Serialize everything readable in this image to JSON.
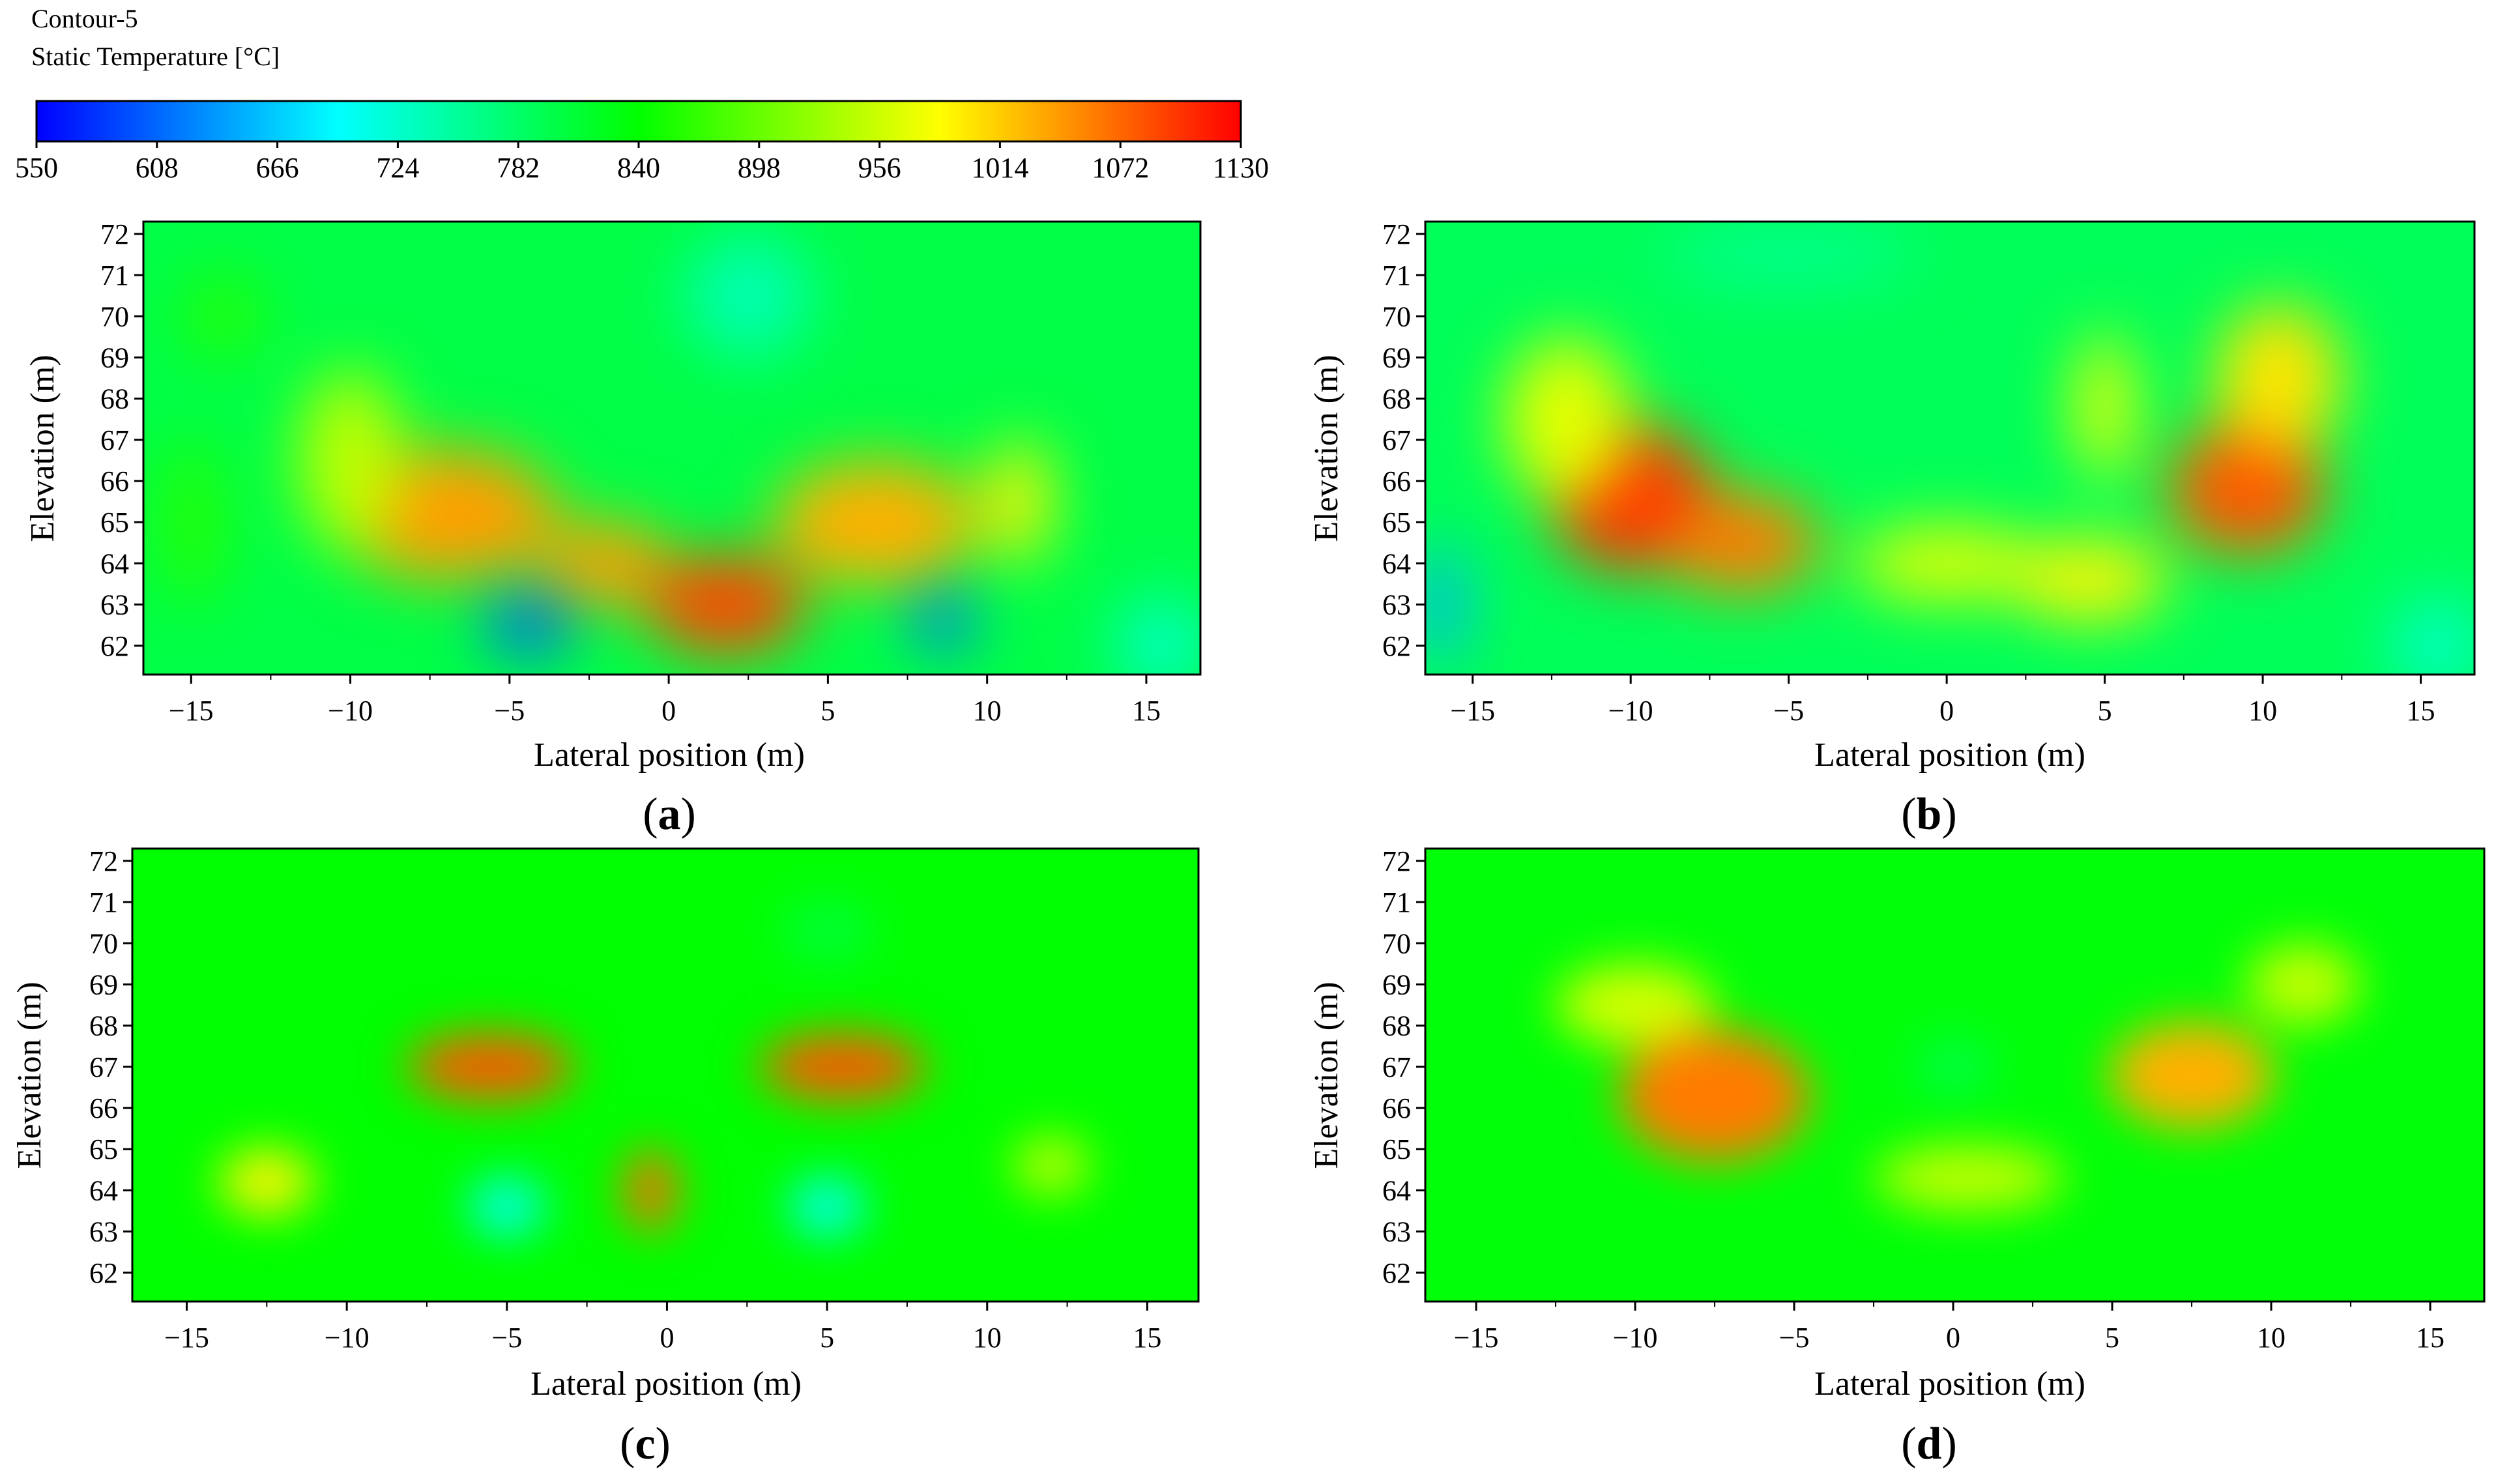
{
  "legend": {
    "title": "Contour-5",
    "variable": "Static Temperature [°C]",
    "min": 550,
    "max": 1130,
    "tick_labels": [
      "550",
      "608",
      "666",
      "724",
      "782",
      "840",
      "898",
      "956",
      "1014",
      "1072",
      "1130"
    ],
    "colors": [
      "#0000ff",
      "#0080ff",
      "#00ffff",
      "#00ff80",
      "#00ff00",
      "#80ff00",
      "#ffff00",
      "#ff8000",
      "#ff0000"
    ]
  },
  "chart_data": [
    {
      "type": "heatmap",
      "panel": "(a)",
      "label_letter": "a",
      "xlabel": "Lateral position (m)",
      "ylabel": "Elevation (m)",
      "xlim": [
        -16.5,
        16.7
      ],
      "ylim": [
        61.3,
        72.3
      ],
      "xticks": [
        -15,
        -10,
        -5,
        0,
        5,
        10,
        15
      ],
      "yticks": [
        62,
        63,
        64,
        65,
        66,
        67,
        68,
        69,
        70,
        71,
        72
      ],
      "base_temperature": 800,
      "hotspots": [
        {
          "x": -4.4,
          "y": 62.5,
          "temperature": 600,
          "sx": 1.4,
          "sy": 0.7
        },
        {
          "x": 8.6,
          "y": 62.6,
          "temperature": 610,
          "sx": 1.0,
          "sy": 0.7
        },
        {
          "x": 1.8,
          "y": 63.0,
          "temperature": 1090,
          "sx": 2.5,
          "sy": 1.2
        },
        {
          "x": -7.0,
          "y": 65.2,
          "temperature": 1040,
          "sx": 3.5,
          "sy": 1.6
        },
        {
          "x": 6.5,
          "y": 65.0,
          "temperature": 1030,
          "sx": 3.2,
          "sy": 1.5
        },
        {
          "x": -2.0,
          "y": 64.0,
          "temperature": 1040,
          "sx": 2.0,
          "sy": 1.0
        },
        {
          "x": -10.0,
          "y": 66.5,
          "temperature": 950,
          "sx": 1.6,
          "sy": 2.2
        },
        {
          "x": 11.0,
          "y": 65.5,
          "temperature": 990,
          "sx": 1.0,
          "sy": 1.5
        },
        {
          "x": -15.0,
          "y": 65.0,
          "temperature": 860,
          "sx": 1.0,
          "sy": 2.0
        },
        {
          "x": -14.0,
          "y": 70.0,
          "temperature": 860,
          "sx": 1.2,
          "sy": 1.0
        },
        {
          "x": 2.5,
          "y": 70.5,
          "temperature": 740,
          "sx": 2.0,
          "sy": 1.5
        },
        {
          "x": 15.5,
          "y": 62.0,
          "temperature": 730,
          "sx": 1.5,
          "sy": 1.2
        }
      ]
    },
    {
      "type": "heatmap",
      "panel": "(b)",
      "label_letter": "b",
      "xlabel": "Lateral position (m)",
      "ylabel": "Elevation (m)",
      "xlim": [
        -16.5,
        16.7
      ],
      "ylim": [
        61.3,
        72.3
      ],
      "xticks": [
        -15,
        -10,
        -5,
        0,
        5,
        10,
        15
      ],
      "yticks": [
        62,
        63,
        64,
        65,
        66,
        67,
        68,
        69,
        70,
        71,
        72
      ],
      "base_temperature": 790,
      "hotspots": [
        {
          "x": -10.0,
          "y": 65.6,
          "temperature": 1100,
          "sx": 2.6,
          "sy": 1.8
        },
        {
          "x": -6.5,
          "y": 64.5,
          "temperature": 1060,
          "sx": 2.5,
          "sy": 1.2
        },
        {
          "x": -12.0,
          "y": 67.5,
          "temperature": 970,
          "sx": 2.0,
          "sy": 2.0
        },
        {
          "x": 0.0,
          "y": 64.0,
          "temperature": 970,
          "sx": 3.0,
          "sy": 0.9
        },
        {
          "x": 4.5,
          "y": 63.6,
          "temperature": 990,
          "sx": 2.5,
          "sy": 1.0
        },
        {
          "x": 9.5,
          "y": 65.8,
          "temperature": 1080,
          "sx": 2.5,
          "sy": 1.6
        },
        {
          "x": 10.5,
          "y": 68.5,
          "temperature": 1000,
          "sx": 2.0,
          "sy": 1.8
        },
        {
          "x": 5.0,
          "y": 67.8,
          "temperature": 980,
          "sx": 0.9,
          "sy": 1.8
        },
        {
          "x": -16.0,
          "y": 63.0,
          "temperature": 650,
          "sx": 0.7,
          "sy": 1.5
        },
        {
          "x": 15.5,
          "y": 62.0,
          "temperature": 730,
          "sx": 1.5,
          "sy": 1.2
        },
        {
          "x": -5.0,
          "y": 71.5,
          "temperature": 760,
          "sx": 4.0,
          "sy": 0.8
        }
      ]
    },
    {
      "type": "heatmap",
      "panel": "(c)",
      "label_letter": "c",
      "xlabel": "Lateral position (m)",
      "ylabel": "Elevation (m)",
      "xlim": [
        -16.7,
        16.6
      ],
      "ylim": [
        61.3,
        72.3
      ],
      "xticks": [
        -15,
        -10,
        -5,
        0,
        5,
        10,
        15
      ],
      "yticks": [
        62,
        63,
        64,
        65,
        66,
        67,
        68,
        69,
        70,
        71,
        72
      ],
      "base_temperature": 840,
      "hotspots": [
        {
          "x": -5.5,
          "y": 67.0,
          "temperature": 1080,
          "sx": 2.6,
          "sy": 0.8
        },
        {
          "x": 5.5,
          "y": 67.0,
          "temperature": 1080,
          "sx": 2.6,
          "sy": 0.8
        },
        {
          "x": -0.5,
          "y": 64.0,
          "temperature": 1070,
          "sx": 0.8,
          "sy": 1.0
        },
        {
          "x": -12.5,
          "y": 64.2,
          "temperature": 990,
          "sx": 1.5,
          "sy": 0.8
        },
        {
          "x": 12.0,
          "y": 64.6,
          "temperature": 950,
          "sx": 1.2,
          "sy": 0.7
        },
        {
          "x": -5.0,
          "y": 63.6,
          "temperature": 700,
          "sx": 1.2,
          "sy": 0.7
        },
        {
          "x": 5.0,
          "y": 63.6,
          "temperature": 700,
          "sx": 1.2,
          "sy": 0.7
        },
        {
          "x": 5.0,
          "y": 70.3,
          "temperature": 810,
          "sx": 1.5,
          "sy": 0.8
        }
      ]
    },
    {
      "type": "heatmap",
      "panel": "(d)",
      "label_letter": "d",
      "xlabel": "Lateral position (m)",
      "ylabel": "Elevation (m)",
      "xlim": [
        -16.6,
        16.7
      ],
      "ylim": [
        61.3,
        72.3
      ],
      "xticks": [
        -15,
        -10,
        -5,
        0,
        5,
        10,
        15
      ],
      "yticks": [
        62,
        63,
        64,
        65,
        66,
        67,
        68,
        69,
        70,
        71,
        72
      ],
      "base_temperature": 835,
      "hotspots": [
        {
          "x": -7.5,
          "y": 66.3,
          "temperature": 1060,
          "sx": 3.0,
          "sy": 1.6
        },
        {
          "x": 7.5,
          "y": 66.8,
          "temperature": 1030,
          "sx": 2.6,
          "sy": 1.3
        },
        {
          "x": -10.0,
          "y": 68.5,
          "temperature": 960,
          "sx": 2.5,
          "sy": 1.0
        },
        {
          "x": 11.0,
          "y": 69.0,
          "temperature": 950,
          "sx": 1.8,
          "sy": 1.0
        },
        {
          "x": 0.5,
          "y": 64.3,
          "temperature": 950,
          "sx": 3.0,
          "sy": 0.8
        },
        {
          "x": 0.0,
          "y": 67.0,
          "temperature": 800,
          "sx": 1.2,
          "sy": 0.7
        }
      ]
    }
  ]
}
